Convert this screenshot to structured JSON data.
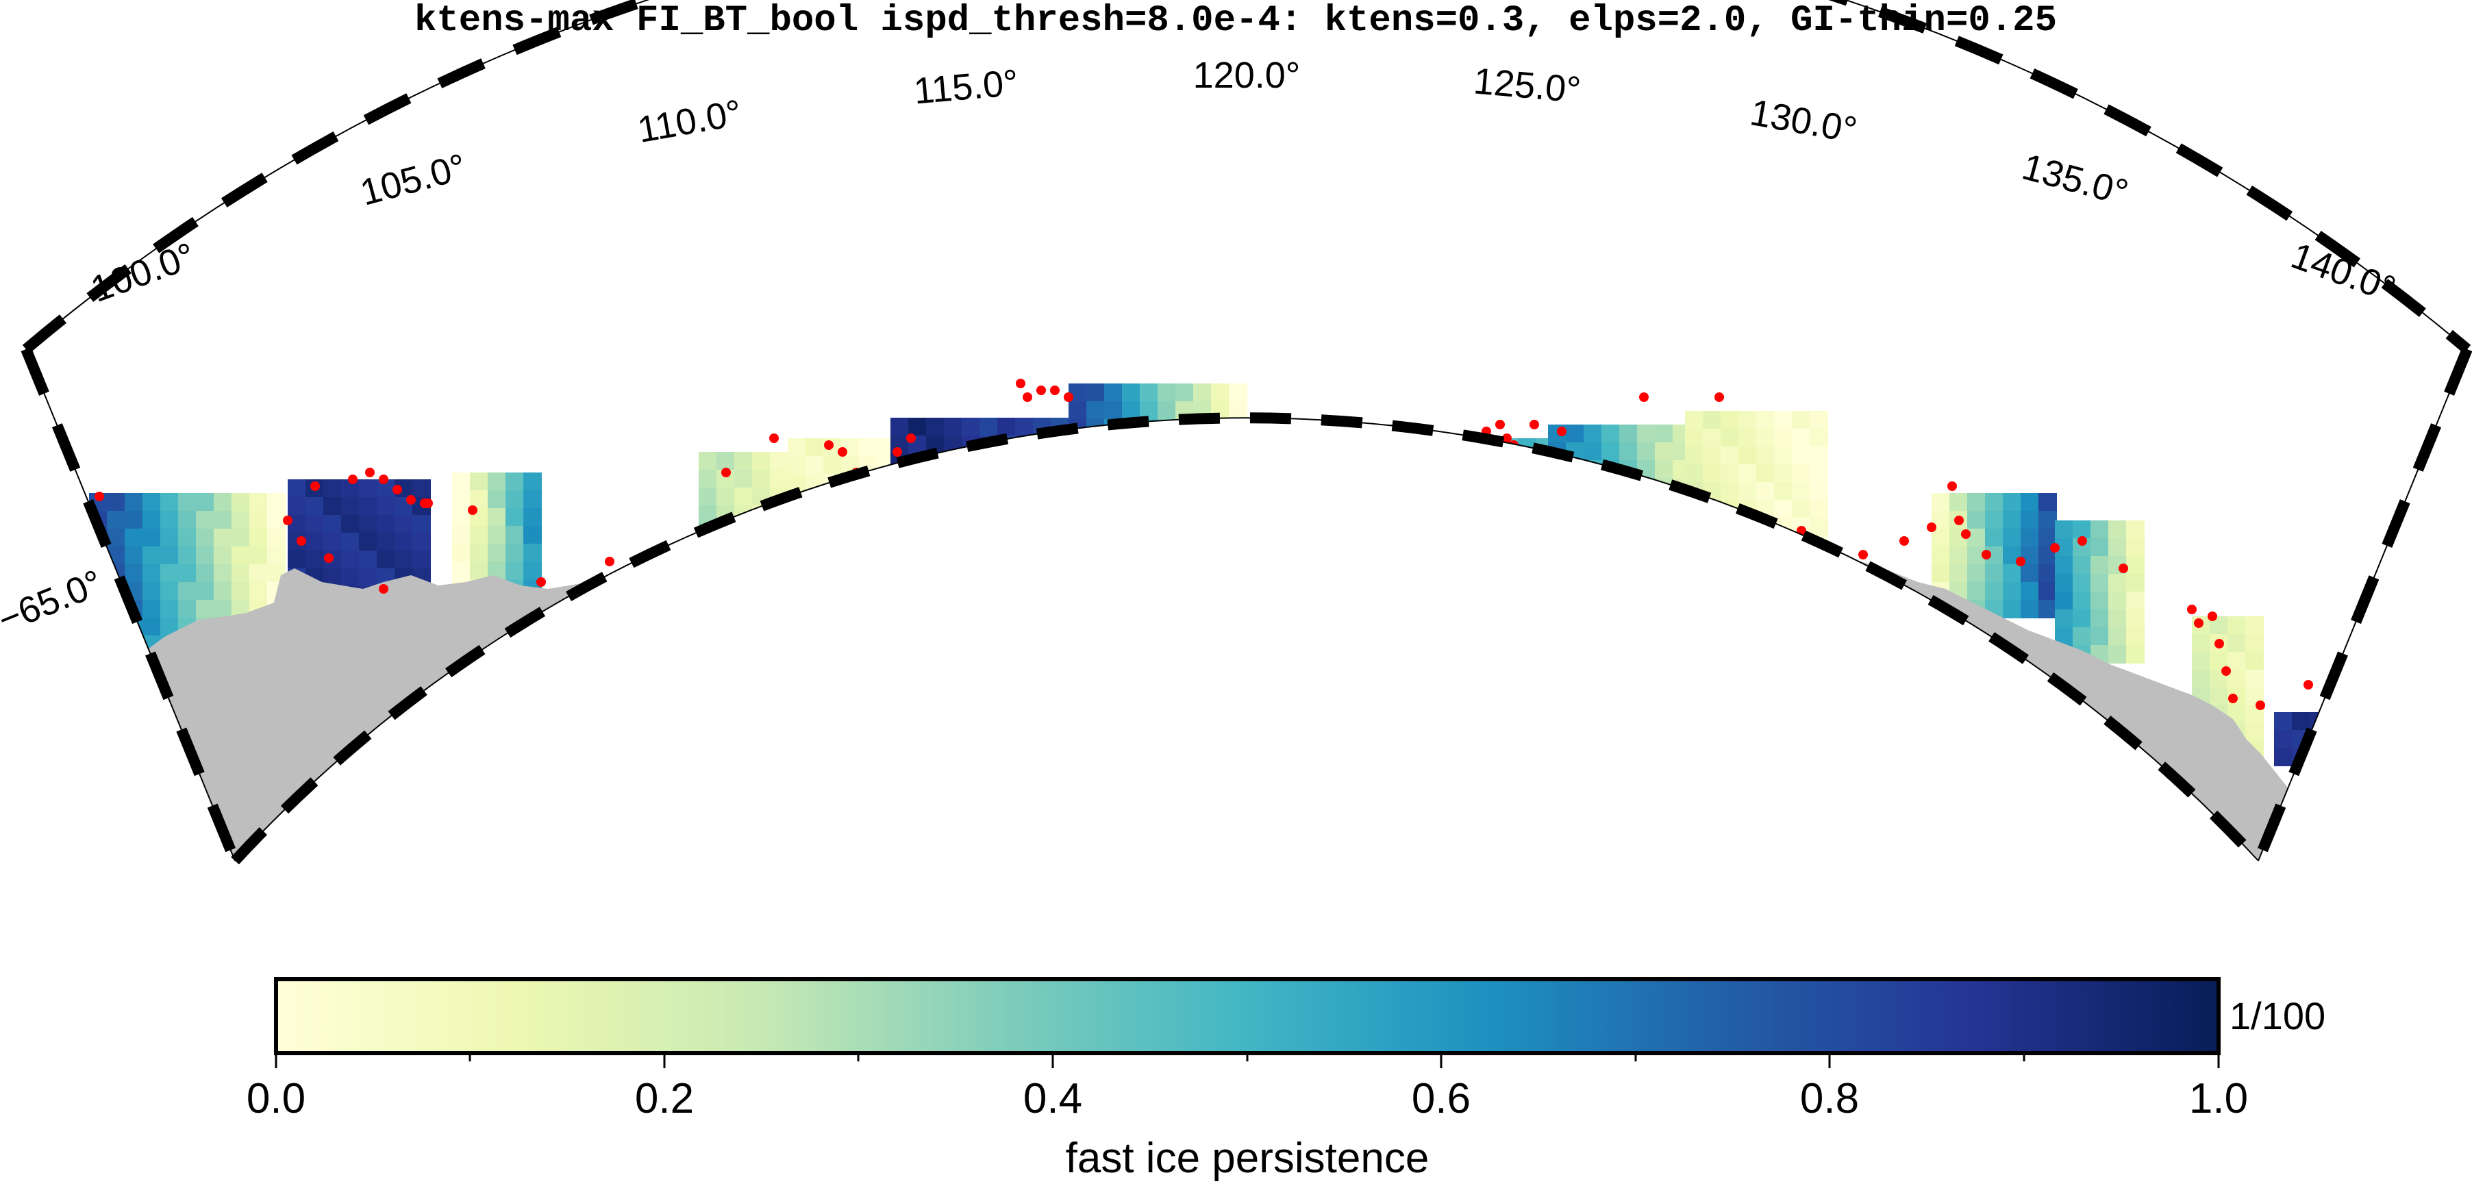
{
  "figure": {
    "title": "ktens-max FI_BT_bool ispd_thresh=8.0e-4: ktens=0.3, elps=2.0, GI-thin=0.25"
  },
  "map": {
    "longitude_labels": [
      "100.0°",
      "105.0°",
      "110.0°",
      "115.0°",
      "120.0°",
      "125.0°",
      "130.0°",
      "135.0°",
      "140.0°"
    ],
    "latitude_labels": [
      "−65.0°"
    ],
    "colors": {
      "land": "#bebebe",
      "grounded_icebergs": "#ff0000",
      "frame_dark": "#000000"
    },
    "layers": [
      "fast-ice-persistence",
      "land-mask",
      "grounded-iceberg-points"
    ]
  },
  "colorbar": {
    "caption": "fast ice persistence",
    "unit_label": "1/100",
    "tick_labels": [
      "0.0",
      "0.2",
      "0.4",
      "0.6",
      "0.8",
      "1.0"
    ],
    "range": [
      0.0,
      1.0
    ],
    "colormap": [
      "#ffffd9",
      "#edf8b1",
      "#c7e9b4",
      "#7fcdbb",
      "#41b6c4",
      "#1d91c0",
      "#225ea8",
      "#253494",
      "#081d58"
    ]
  }
}
